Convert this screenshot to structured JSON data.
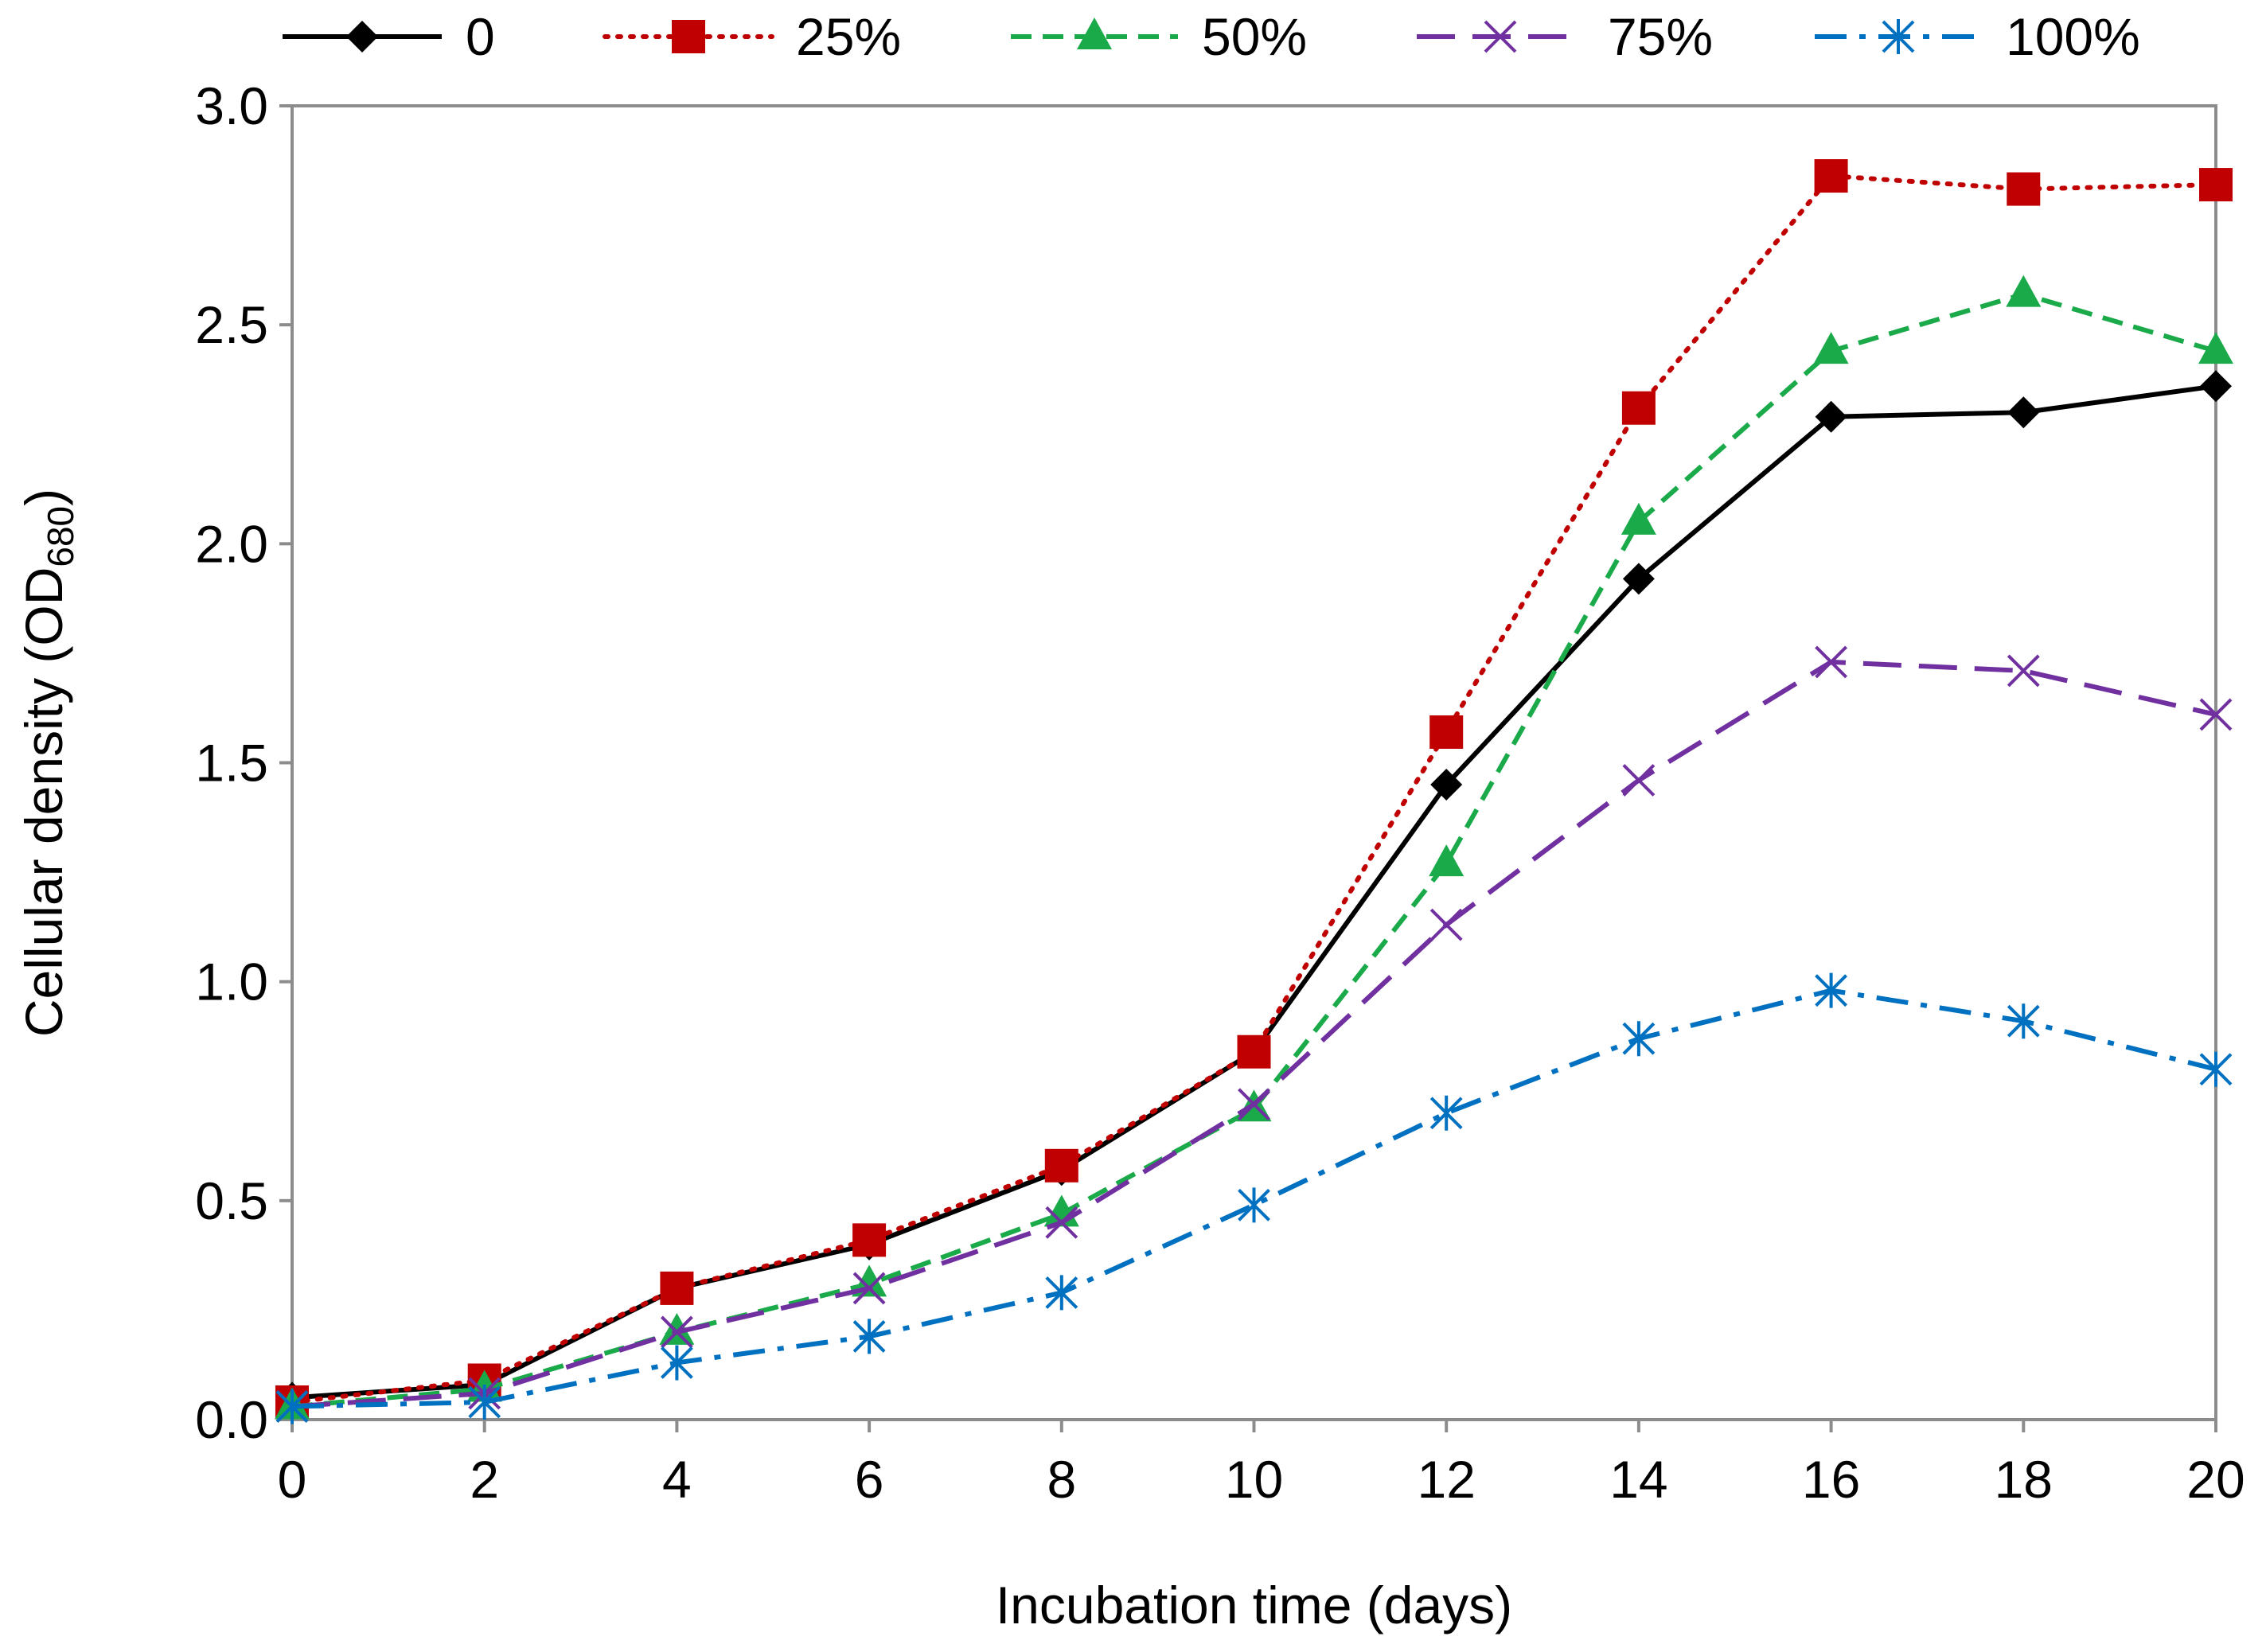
{
  "chart_data": {
    "type": "line",
    "title": "",
    "xlabel": "Incubation time (days)",
    "ylabel_main": "Cellular density (OD",
    "ylabel_sub": "680",
    "ylabel_close": ")",
    "xlim": [
      0,
      20
    ],
    "ylim": [
      0,
      3
    ],
    "xticks": [
      0,
      2,
      4,
      6,
      8,
      10,
      12,
      14,
      16,
      18,
      20
    ],
    "yticks": [
      0,
      0.5,
      1,
      1.5,
      2,
      2.5,
      3
    ],
    "x_tick_labels": [
      "0",
      "2",
      "4",
      "6",
      "8",
      "10",
      "12",
      "14",
      "16",
      "18",
      "20"
    ],
    "y_tick_labels": [
      "0.0",
      "0.5",
      "1.0",
      "1.5",
      "2.0",
      "2.5",
      "3.0"
    ],
    "grid": false,
    "legend_position": "top",
    "x": [
      0,
      2,
      4,
      6,
      8,
      10,
      12,
      14,
      16,
      18,
      20
    ],
    "series": [
      {
        "name": "0",
        "color": "#000000",
        "dash": "solid",
        "marker": "diamond",
        "values": [
          0.05,
          0.08,
          0.3,
          0.4,
          0.57,
          0.84,
          1.45,
          1.92,
          2.29,
          2.3,
          2.36
        ]
      },
      {
        "name": "25%",
        "color": "#c00000",
        "dash": "dot",
        "marker": "square",
        "values": [
          0.04,
          0.09,
          0.3,
          0.41,
          0.58,
          0.84,
          1.57,
          2.31,
          2.84,
          2.81,
          2.82
        ]
      },
      {
        "name": "50%",
        "color": "#1aaa4a",
        "dash": "dash",
        "marker": "triangle",
        "values": [
          0.03,
          0.07,
          0.2,
          0.31,
          0.47,
          0.71,
          1.27,
          2.05,
          2.44,
          2.57,
          2.44
        ]
      },
      {
        "name": "75%",
        "color": "#7030a0",
        "dash": "longdash",
        "marker": "x",
        "values": [
          0.03,
          0.06,
          0.2,
          0.3,
          0.45,
          0.72,
          1.13,
          1.46,
          1.73,
          1.71,
          1.61
        ]
      },
      {
        "name": "100%",
        "color": "#0070c0",
        "dash": "dashdot",
        "marker": "asterisk",
        "values": [
          0.03,
          0.04,
          0.13,
          0.19,
          0.29,
          0.49,
          0.7,
          0.87,
          0.98,
          0.91,
          0.8
        ]
      }
    ]
  }
}
